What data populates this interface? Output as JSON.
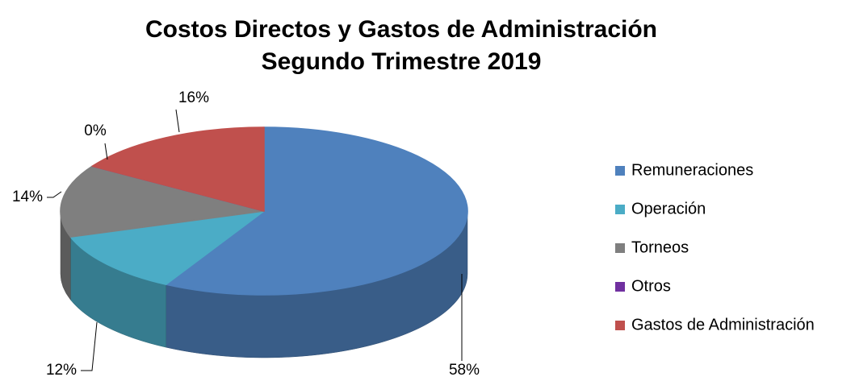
{
  "chart_data": {
    "type": "pie",
    "title": "Costos Directos y Gastos de Administración",
    "subtitle": "Segundo Trimestre 2019",
    "categories": [
      "Remuneraciones",
      "Operación",
      "Torneos",
      "Otros",
      "Gastos de Administración"
    ],
    "values": [
      58,
      12,
      14,
      0,
      16
    ],
    "value_labels": [
      "58%",
      "12%",
      "14%",
      "0%",
      "16%"
    ],
    "colors": [
      "#4f81bd",
      "#4bacc6",
      "#7f7f7f",
      "#7030a0",
      "#c0504d"
    ],
    "legend": "right"
  }
}
